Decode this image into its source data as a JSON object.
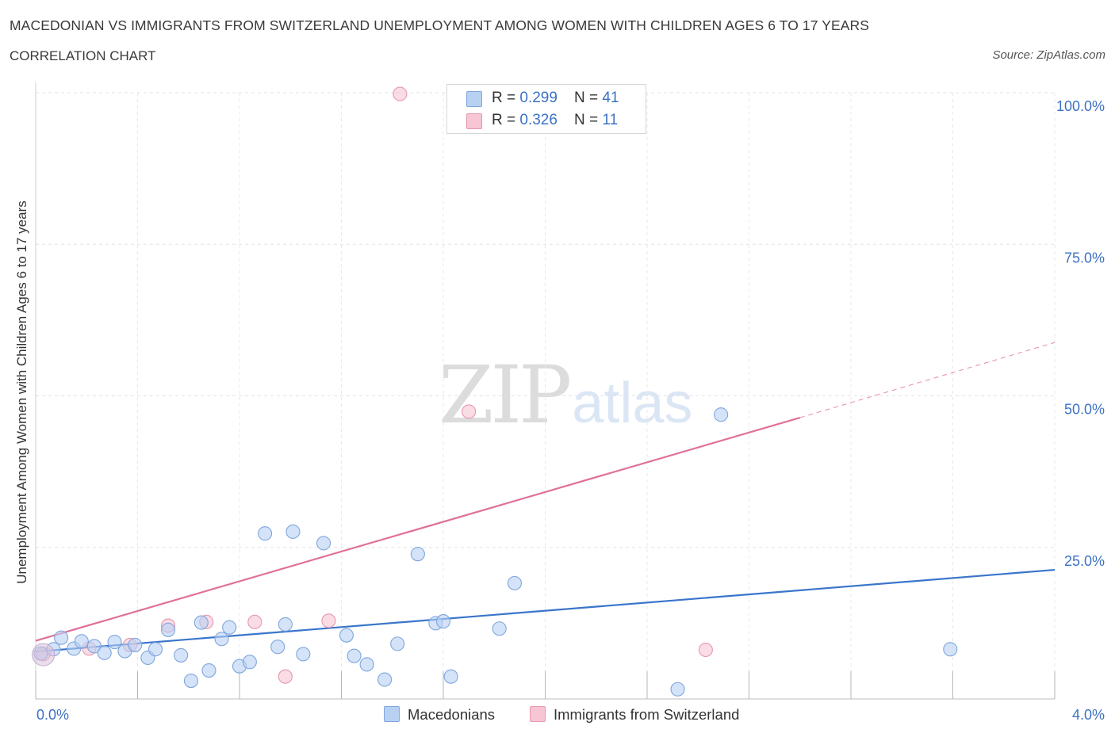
{
  "header": {
    "title": "MACEDONIAN VS IMMIGRANTS FROM SWITZERLAND UNEMPLOYMENT AMONG WOMEN WITH CHILDREN AGES 6 TO 17 YEARS",
    "subtitle": "CORRELATION CHART",
    "source": "Source: ZipAtlas.com"
  },
  "watermark": {
    "zip": "ZIP",
    "atlas": "atlas"
  },
  "legend": {
    "r_label": "R = ",
    "n_label": "N = ",
    "rows": [
      {
        "r": "0.299",
        "n": "41",
        "color": "#b8d1f3"
      },
      {
        "r": "0.326",
        "n": "11",
        "color": "#f7c5d4"
      }
    ]
  },
  "chart_data": {
    "type": "scatter",
    "title": "MACEDONIAN VS IMMIGRANTS FROM SWITZERLAND UNEMPLOYMENT AMONG WOMEN WITH CHILDREN AGES 6 TO 17 YEARS",
    "xlabel": "",
    "ylabel": "Unemployment Among Women with Children Ages 6 to 17 years",
    "xlim": [
      0,
      4
    ],
    "ylim": [
      0,
      100
    ],
    "x_tick_labels": [
      "0.0%",
      "4.0%"
    ],
    "y_ticks": [
      25,
      50,
      75,
      100
    ],
    "y_tick_labels": [
      "25.0%",
      "50.0%",
      "75.0%",
      "100.0%"
    ],
    "grid": true,
    "legend_position": "bottom",
    "series": [
      {
        "name": "Macedonians",
        "color": "#b8d1f3",
        "stroke": "#7fa6dc",
        "trend_color": "#3a75cc",
        "trend": {
          "x0": 0,
          "y0": 7.8,
          "x1": 4,
          "y1": 21.3
        },
        "points": [
          [
            0.02,
            7.5
          ],
          [
            0.07,
            8.2
          ],
          [
            0.1,
            10.1
          ],
          [
            0.15,
            8.3
          ],
          [
            0.18,
            9.5
          ],
          [
            0.23,
            8.7
          ],
          [
            0.27,
            7.6
          ],
          [
            0.31,
            9.4
          ],
          [
            0.35,
            7.9
          ],
          [
            0.39,
            8.9
          ],
          [
            0.44,
            6.8
          ],
          [
            0.47,
            8.2
          ],
          [
            0.52,
            11.4
          ],
          [
            0.57,
            7.2
          ],
          [
            0.61,
            3.0
          ],
          [
            0.65,
            12.6
          ],
          [
            0.68,
            4.7
          ],
          [
            0.73,
            9.9
          ],
          [
            0.76,
            11.8
          ],
          [
            0.8,
            5.4
          ],
          [
            0.84,
            6.1
          ],
          [
            0.9,
            27.3
          ],
          [
            0.95,
            8.6
          ],
          [
            0.98,
            12.3
          ],
          [
            1.01,
            27.6
          ],
          [
            1.05,
            7.4
          ],
          [
            1.13,
            25.7
          ],
          [
            1.22,
            10.5
          ],
          [
            1.25,
            7.1
          ],
          [
            1.3,
            5.7
          ],
          [
            1.37,
            3.2
          ],
          [
            1.42,
            9.1
          ],
          [
            1.5,
            23.9
          ],
          [
            1.57,
            12.5
          ],
          [
            1.6,
            12.8
          ],
          [
            1.63,
            3.7
          ],
          [
            1.82,
            11.6
          ],
          [
            1.88,
            19.1
          ],
          [
            2.52,
            1.6
          ],
          [
            2.69,
            46.9
          ],
          [
            3.59,
            8.2
          ]
        ]
      },
      {
        "name": "Immigrants from Switzerland",
        "color": "#f7c5d4",
        "stroke": "#e697b0",
        "trend_color": "#e0709a",
        "trend": {
          "x0": 0,
          "y0": 9.6,
          "x1": 3.0,
          "y1": 46.4
        },
        "trend_dashed": {
          "x0": 3.0,
          "y0": 46.4,
          "x1": 4,
          "y1": 58.8
        },
        "points": [
          [
            0.03,
            7.4
          ],
          [
            0.21,
            8.3
          ],
          [
            0.37,
            8.9
          ],
          [
            0.52,
            12.1
          ],
          [
            0.67,
            12.7
          ],
          [
            0.86,
            12.7
          ],
          [
            0.98,
            3.7
          ],
          [
            1.15,
            12.9
          ],
          [
            1.43,
            99.8
          ],
          [
            1.7,
            47.4
          ],
          [
            2.63,
            8.1
          ]
        ]
      }
    ]
  }
}
